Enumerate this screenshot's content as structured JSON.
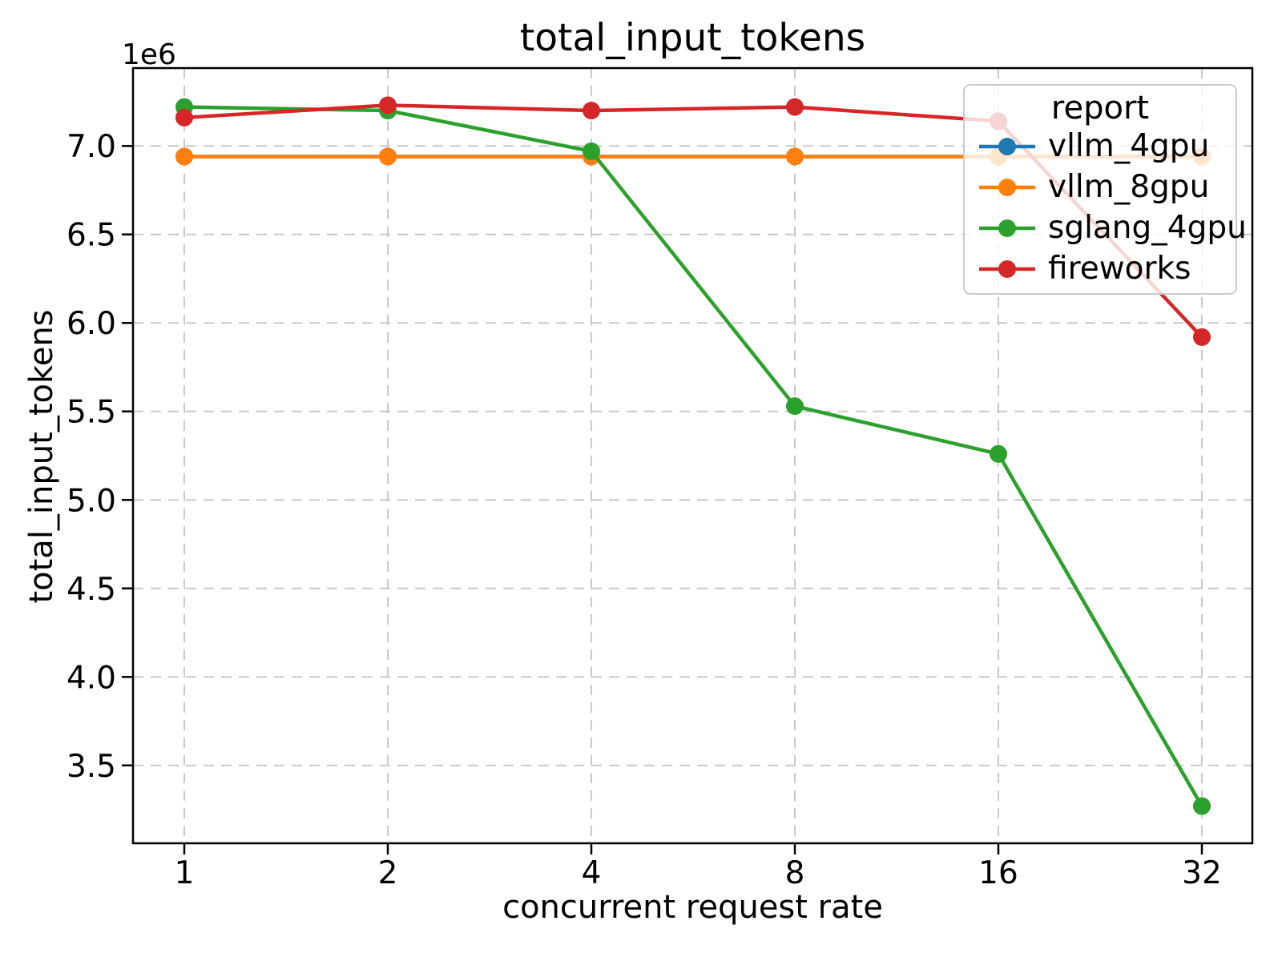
{
  "figure": {
    "background": "#ffffff",
    "frame_color": "#000000",
    "grid_color": "#c9c9c9"
  },
  "chart_data": {
    "type": "line",
    "title": "total_input_tokens",
    "xlabel": "concurrent request rate",
    "ylabel": "total_input_tokens",
    "x_scale": "log2",
    "x": [
      1,
      2,
      4,
      8,
      16,
      32
    ],
    "x_tick_labels": [
      "1",
      "2",
      "4",
      "8",
      "16",
      "32"
    ],
    "y_ticks": [
      3500000,
      4000000,
      4500000,
      5000000,
      5500000,
      6000000,
      6500000,
      7000000
    ],
    "y_tick_labels": [
      "3.5",
      "4.0",
      "4.5",
      "5.0",
      "5.5",
      "6.0",
      "6.5",
      "7.0"
    ],
    "y_offset_label": "1e6",
    "ylim": [
      3060000,
      7440000
    ],
    "grid": true,
    "legend": {
      "title": "report",
      "position": "upper right"
    },
    "series": [
      {
        "name": "vllm_4gpu",
        "color": "#1f77b4",
        "values": [
          6940000,
          6940000,
          6940000,
          6940000,
          6940000,
          6940000
        ]
      },
      {
        "name": "vllm_8gpu",
        "color": "#ff7f0e",
        "values": [
          6940000,
          6940000,
          6940000,
          6940000,
          6940000,
          6940000
        ]
      },
      {
        "name": "sglang_4gpu",
        "color": "#2ca02c",
        "values": [
          7220000,
          7200000,
          6970000,
          5530000,
          5260000,
          3270000
        ]
      },
      {
        "name": "fireworks",
        "color": "#d62728",
        "values": [
          7160000,
          7230000,
          7200000,
          7220000,
          7140000,
          5920000
        ]
      }
    ]
  }
}
